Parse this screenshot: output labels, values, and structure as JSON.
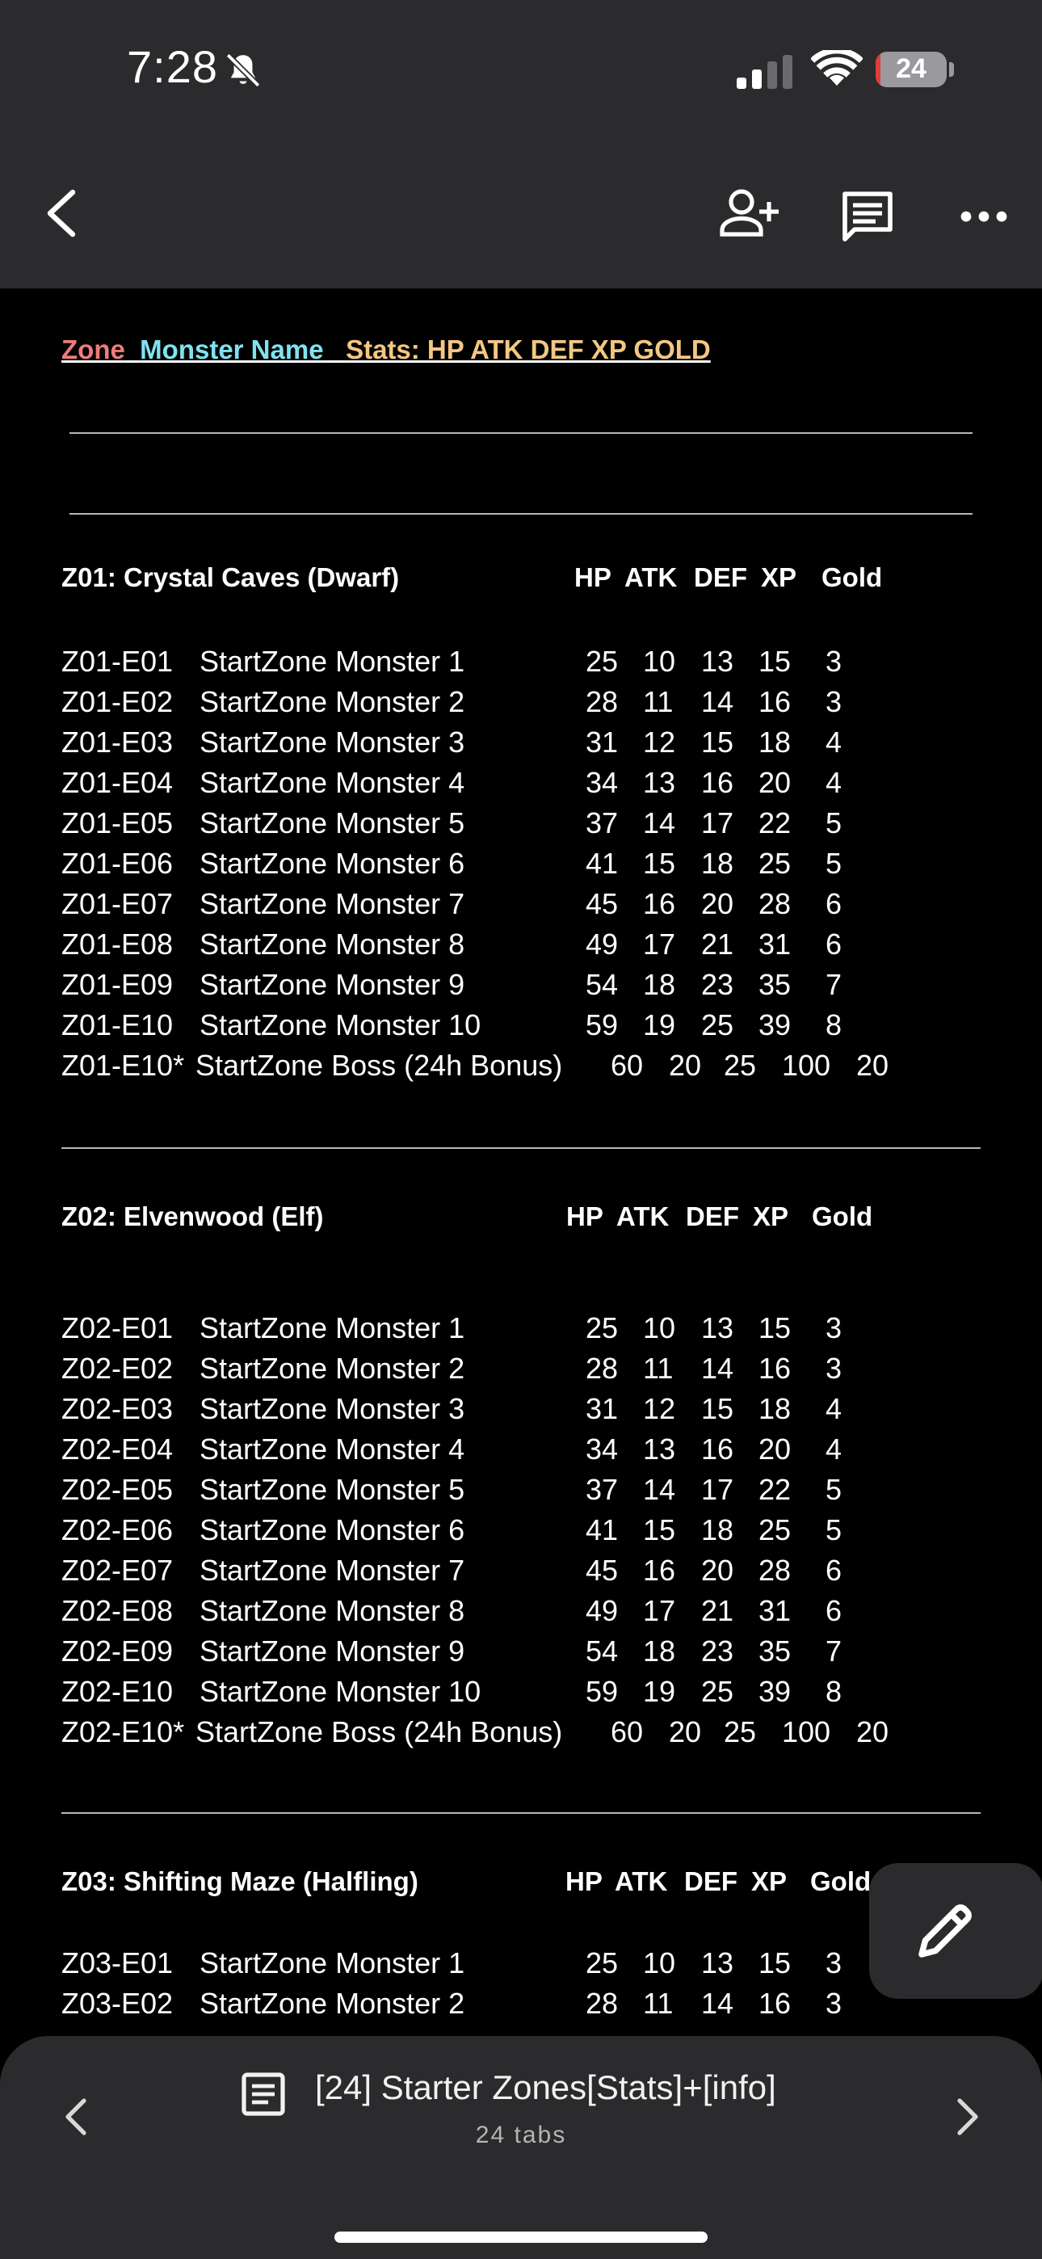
{
  "status_bar": {
    "time": "7:28",
    "battery_level": "24",
    "icons": [
      "bell-off-icon",
      "signal-icon",
      "wifi-icon",
      "battery-icon"
    ]
  },
  "app_bar": {
    "icons": [
      "back-arrow-icon",
      "add-person-icon",
      "comment-icon",
      "more-dots-icon"
    ]
  },
  "legend": {
    "zone": "Zone",
    "monster_name": "Monster Name",
    "stats": "Stats: HP ATK DEF XP GOLD"
  },
  "headers": {
    "hp": "HP",
    "atk": "ATK",
    "def": "DEF",
    "xp": "XP",
    "gold": "Gold"
  },
  "sections": [
    {
      "title": "Z01: Crystal Caves (Dwarf)",
      "rows": [
        {
          "id": "Z01-E01",
          "name": "StartZone Monster 1",
          "hp": "25",
          "atk": "10",
          "def": "13",
          "xp": "15",
          "gold": "3"
        },
        {
          "id": "Z01-E02",
          "name": "StartZone Monster 2",
          "hp": "28",
          "atk": "11",
          "def": "14",
          "xp": "16",
          "gold": "3"
        },
        {
          "id": "Z01-E03",
          "name": "StartZone Monster 3",
          "hp": "31",
          "atk": "12",
          "def": "15",
          "xp": "18",
          "gold": "4"
        },
        {
          "id": "Z01-E04",
          "name": "StartZone Monster 4",
          "hp": "34",
          "atk": "13",
          "def": "16",
          "xp": "20",
          "gold": "4"
        },
        {
          "id": "Z01-E05",
          "name": "StartZone Monster 5",
          "hp": "37",
          "atk": "14",
          "def": "17",
          "xp": "22",
          "gold": "5"
        },
        {
          "id": "Z01-E06",
          "name": "StartZone Monster 6",
          "hp": "41",
          "atk": "15",
          "def": "18",
          "xp": "25",
          "gold": "5"
        },
        {
          "id": "Z01-E07",
          "name": "StartZone Monster 7",
          "hp": "45",
          "atk": "16",
          "def": "20",
          "xp": "28",
          "gold": "6"
        },
        {
          "id": "Z01-E08",
          "name": "StartZone Monster 8",
          "hp": "49",
          "atk": "17",
          "def": "21",
          "xp": "31",
          "gold": "6"
        },
        {
          "id": "Z01-E09",
          "name": "StartZone Monster 9",
          "hp": "54",
          "atk": "18",
          "def": "23",
          "xp": "35",
          "gold": "7"
        },
        {
          "id": "Z01-E10",
          "name": "StartZone Monster 10",
          "hp": "59",
          "atk": "19",
          "def": "25",
          "xp": "39",
          "gold": "8"
        }
      ],
      "boss": {
        "id": "Z01-E10*",
        "name": "StartZone Boss (24h Bonus)",
        "hp": "60",
        "atk": "20",
        "def": "25",
        "xp": "100",
        "gold": "20"
      }
    },
    {
      "title": "Z02: Elvenwood (Elf)",
      "rows": [
        {
          "id": "Z02-E01",
          "name": "StartZone Monster 1",
          "hp": "25",
          "atk": "10",
          "def": "13",
          "xp": "15",
          "gold": "3"
        },
        {
          "id": "Z02-E02",
          "name": "StartZone Monster 2",
          "hp": "28",
          "atk": "11",
          "def": "14",
          "xp": "16",
          "gold": "3"
        },
        {
          "id": "Z02-E03",
          "name": "StartZone Monster 3",
          "hp": "31",
          "atk": "12",
          "def": "15",
          "xp": "18",
          "gold": "4"
        },
        {
          "id": "Z02-E04",
          "name": "StartZone Monster 4",
          "hp": "34",
          "atk": "13",
          "def": "16",
          "xp": "20",
          "gold": "4"
        },
        {
          "id": "Z02-E05",
          "name": "StartZone Monster 5",
          "hp": "37",
          "atk": "14",
          "def": "17",
          "xp": "22",
          "gold": "5"
        },
        {
          "id": "Z02-E06",
          "name": "StartZone Monster 6",
          "hp": "41",
          "atk": "15",
          "def": "18",
          "xp": "25",
          "gold": "5"
        },
        {
          "id": "Z02-E07",
          "name": "StartZone Monster 7",
          "hp": "45",
          "atk": "16",
          "def": "20",
          "xp": "28",
          "gold": "6"
        },
        {
          "id": "Z02-E08",
          "name": "StartZone Monster 8",
          "hp": "49",
          "atk": "17",
          "def": "21",
          "xp": "31",
          "gold": "6"
        },
        {
          "id": "Z02-E09",
          "name": "StartZone Monster 9",
          "hp": "54",
          "atk": "18",
          "def": "23",
          "xp": "35",
          "gold": "7"
        },
        {
          "id": "Z02-E10",
          "name": "StartZone Monster 10",
          "hp": "59",
          "atk": "19",
          "def": "25",
          "xp": "39",
          "gold": "8"
        }
      ],
      "boss": {
        "id": "Z02-E10*",
        "name": "StartZone Boss (24h Bonus)",
        "hp": "60",
        "atk": "20",
        "def": "25",
        "xp": "100",
        "gold": "20"
      }
    },
    {
      "title": "Z03: Shifting Maze (Halfling)",
      "rows": [
        {
          "id": "Z03-E01",
          "name": "StartZone Monster 1",
          "hp": "25",
          "atk": "10",
          "def": "13",
          "xp": "15",
          "gold": "3"
        },
        {
          "id": "Z03-E02",
          "name": "StartZone Monster 2",
          "hp": "28",
          "atk": "11",
          "def": "14",
          "xp": "16",
          "gold": "3"
        }
      ]
    }
  ],
  "fab": {
    "icon": "pencil-icon"
  },
  "bottom_bar": {
    "doc_title": "[24] Starter Zones[Stats]+[info]",
    "tab_count": "24 tabs",
    "icons": [
      "chevron-left-icon",
      "document-icon",
      "chevron-right-icon"
    ]
  },
  "colors": {
    "zone": "#f07b7b",
    "monster_name": "#7fe3ef",
    "stats": "#f3c783",
    "bar_bg": "#2b2b2d",
    "doc_bg": "#000000"
  }
}
